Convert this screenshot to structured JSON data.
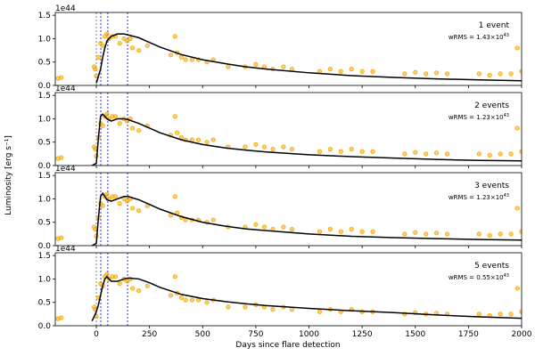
{
  "shared": {
    "ylabel": "Luminosity [erg s⁻¹]",
    "xlabel": "Days since flare detection"
  },
  "chart_data": [
    {
      "type": "scatter",
      "offset_text": "1e44",
      "label": "1 event",
      "wrms": "wRMS = 1.43×10",
      "wrms_exp": "43",
      "xlim": [
        -193,
        2000
      ],
      "ylim": [
        0,
        1.56
      ],
      "xticks": [
        0,
        250,
        500,
        750,
        1000,
        1250,
        1500,
        1750,
        2000
      ],
      "yticks": [
        {
          "value": 0,
          "label": "0.0"
        },
        {
          "value": 0.5,
          "label": "0.5"
        },
        {
          "value": 1,
          "label": "1.0"
        },
        {
          "value": 1.5,
          "label": "1.5"
        }
      ],
      "vlines": [
        {
          "x": 0,
          "color": "#808080"
        },
        {
          "x": 21,
          "color": "#3030d0"
        },
        {
          "x": 54,
          "color": "#3030d0"
        },
        {
          "x": 147,
          "color": "#3030d0"
        }
      ],
      "observations": {
        "color": "#f5a800",
        "x": [
          -180,
          -165,
          -10,
          -5,
          0,
          10,
          20,
          30,
          40,
          50,
          60,
          75,
          90,
          110,
          130,
          145,
          160,
          170,
          200,
          240,
          350,
          370,
          380,
          400,
          420,
          450,
          480,
          520,
          550,
          620,
          700,
          750,
          790,
          830,
          880,
          920,
          1050,
          1100,
          1150,
          1200,
          1250,
          1300,
          1450,
          1500,
          1550,
          1600,
          1650,
          1800,
          1850,
          1900,
          1950,
          1980,
          2000
        ],
        "values": [
          0.15,
          0.17,
          0.4,
          0.35,
          0.2,
          0.6,
          0.9,
          0.85,
          1.05,
          1.1,
          1.0,
          1.05,
          1.05,
          0.9,
          1.0,
          0.95,
          1.0,
          0.8,
          0.75,
          0.85,
          0.65,
          1.05,
          0.7,
          0.6,
          0.55,
          0.55,
          0.55,
          0.5,
          0.55,
          0.4,
          0.4,
          0.45,
          0.4,
          0.35,
          0.4,
          0.35,
          0.3,
          0.35,
          0.3,
          0.35,
          0.3,
          0.3,
          0.25,
          0.28,
          0.25,
          0.27,
          0.25,
          0.25,
          0.22,
          0.25,
          0.25,
          0.8,
          0.3
        ]
      },
      "model": {
        "color": "#000000",
        "x": [
          -20,
          0,
          10,
          20,
          30,
          40,
          50,
          70,
          100,
          130,
          150,
          200,
          250,
          300,
          400,
          500,
          600,
          700,
          800,
          1000,
          1200,
          1400,
          1600,
          1800,
          2000
        ],
        "values": [
          null,
          0.05,
          0.2,
          0.35,
          0.6,
          0.8,
          0.95,
          1.05,
          1.1,
          1.1,
          1.08,
          1.02,
          0.92,
          0.82,
          0.66,
          0.55,
          0.47,
          0.4,
          0.35,
          0.27,
          0.21,
          0.17,
          0.14,
          0.12,
          0.1
        ]
      }
    },
    {
      "type": "scatter",
      "offset_text": "1e44",
      "label": "2 events",
      "wrms": "wRMS = 1.23×10",
      "wrms_exp": "43",
      "xlim": [
        -193,
        2000
      ],
      "ylim": [
        0,
        1.56
      ],
      "xticks": [
        0,
        250,
        500,
        750,
        1000,
        1250,
        1500,
        1750,
        2000
      ],
      "yticks": [
        {
          "value": 0,
          "label": "0.0"
        },
        {
          "value": 0.5,
          "label": "0.5"
        },
        {
          "value": 1,
          "label": "1.0"
        },
        {
          "value": 1.5,
          "label": "1.5"
        }
      ],
      "vlines": [
        {
          "x": 0,
          "color": "#808080"
        },
        {
          "x": 21,
          "color": "#3030d0"
        },
        {
          "x": 54,
          "color": "#3030d0"
        },
        {
          "x": 147,
          "color": "#3030d0"
        }
      ],
      "observations": {
        "color": "#f5a800",
        "x": [
          -180,
          -165,
          -10,
          -5,
          0,
          10,
          20,
          30,
          40,
          50,
          60,
          75,
          90,
          110,
          130,
          145,
          160,
          170,
          200,
          240,
          350,
          370,
          380,
          400,
          420,
          450,
          480,
          520,
          550,
          620,
          700,
          750,
          790,
          830,
          880,
          920,
          1050,
          1100,
          1150,
          1200,
          1250,
          1300,
          1450,
          1500,
          1550,
          1600,
          1650,
          1800,
          1850,
          1900,
          1950,
          1980,
          2000
        ],
        "values": [
          0.15,
          0.17,
          0.4,
          0.35,
          0.2,
          0.6,
          0.9,
          0.85,
          1.05,
          1.1,
          1.0,
          1.05,
          1.05,
          0.9,
          1.0,
          0.95,
          1.0,
          0.8,
          0.75,
          0.85,
          0.65,
          1.05,
          0.7,
          0.6,
          0.55,
          0.55,
          0.55,
          0.5,
          0.55,
          0.4,
          0.4,
          0.45,
          0.4,
          0.35,
          0.4,
          0.35,
          0.3,
          0.35,
          0.3,
          0.35,
          0.3,
          0.3,
          0.25,
          0.28,
          0.25,
          0.27,
          0.25,
          0.25,
          0.22,
          0.25,
          0.25,
          0.8,
          0.3
        ]
      },
      "model": {
        "color": "#000000",
        "x": [
          -20,
          0,
          10,
          20,
          30,
          40,
          50,
          70,
          100,
          130,
          150,
          200,
          250,
          300,
          400,
          500,
          600,
          700,
          800,
          1000,
          1200,
          1400,
          1600,
          1800,
          2000
        ],
        "values": [
          0,
          0.05,
          0.6,
          1.05,
          1.1,
          1.05,
          1.0,
          0.95,
          1.0,
          1.0,
          0.98,
          0.9,
          0.8,
          0.7,
          0.55,
          0.45,
          0.38,
          0.33,
          0.29,
          0.23,
          0.19,
          0.16,
          0.13,
          0.11,
          0.1
        ]
      }
    },
    {
      "type": "scatter",
      "offset_text": "1e44",
      "label": "3 events",
      "wrms": "wRMS = 1.23×10",
      "wrms_exp": "43",
      "xlim": [
        -193,
        2000
      ],
      "ylim": [
        0,
        1.56
      ],
      "xticks": [
        0,
        250,
        500,
        750,
        1000,
        1250,
        1500,
        1750,
        2000
      ],
      "yticks": [
        {
          "value": 0,
          "label": "0.0"
        },
        {
          "value": 0.5,
          "label": "0.5"
        },
        {
          "value": 1,
          "label": "1.0"
        },
        {
          "value": 1.5,
          "label": "1.5"
        }
      ],
      "vlines": [
        {
          "x": 0,
          "color": "#808080"
        },
        {
          "x": 21,
          "color": "#3030d0"
        },
        {
          "x": 54,
          "color": "#3030d0"
        },
        {
          "x": 147,
          "color": "#3030d0"
        }
      ],
      "observations": {
        "color": "#f5a800",
        "x": [
          -180,
          -165,
          -10,
          -5,
          0,
          10,
          20,
          30,
          40,
          50,
          60,
          75,
          90,
          110,
          130,
          145,
          160,
          170,
          200,
          240,
          350,
          370,
          380,
          400,
          420,
          450,
          480,
          520,
          550,
          620,
          700,
          750,
          790,
          830,
          880,
          920,
          1050,
          1100,
          1150,
          1200,
          1250,
          1300,
          1450,
          1500,
          1550,
          1600,
          1650,
          1800,
          1850,
          1900,
          1950,
          1980,
          2000
        ],
        "values": [
          0.15,
          0.17,
          0.4,
          0.35,
          0.2,
          0.6,
          0.9,
          0.85,
          1.05,
          1.1,
          1.0,
          1.05,
          1.05,
          0.9,
          1.0,
          0.95,
          1.0,
          0.8,
          0.75,
          0.85,
          0.65,
          1.05,
          0.7,
          0.6,
          0.55,
          0.55,
          0.55,
          0.5,
          0.55,
          0.4,
          0.4,
          0.45,
          0.4,
          0.35,
          0.4,
          0.35,
          0.3,
          0.35,
          0.3,
          0.35,
          0.3,
          0.3,
          0.25,
          0.28,
          0.25,
          0.27,
          0.25,
          0.25,
          0.22,
          0.25,
          0.25,
          0.8,
          0.3
        ]
      },
      "model": {
        "color": "#000000",
        "x": [
          -20,
          0,
          10,
          20,
          30,
          40,
          50,
          70,
          100,
          130,
          150,
          200,
          250,
          300,
          400,
          500,
          600,
          700,
          800,
          1000,
          1200,
          1400,
          1600,
          1800,
          2000
        ],
        "values": [
          0,
          0.05,
          0.6,
          1.05,
          1.12,
          1.05,
          0.98,
          0.95,
          1.0,
          1.05,
          1.05,
          0.98,
          0.88,
          0.78,
          0.62,
          0.5,
          0.42,
          0.36,
          0.32,
          0.25,
          0.2,
          0.17,
          0.15,
          0.13,
          0.12
        ]
      }
    },
    {
      "type": "scatter",
      "offset_text": "1e44",
      "label": "5 events",
      "wrms": "wRMS = 0.55×10",
      "wrms_exp": "43",
      "xlim": [
        -193,
        2000
      ],
      "ylim": [
        0,
        1.56
      ],
      "xticks": [
        0,
        250,
        500,
        750,
        1000,
        1250,
        1500,
        1750,
        2000
      ],
      "yticks": [
        {
          "value": 0,
          "label": "0.0"
        },
        {
          "value": 0.5,
          "label": "0.5"
        },
        {
          "value": 1,
          "label": "1.0"
        },
        {
          "value": 1.5,
          "label": "1.5"
        }
      ],
      "vlines": [
        {
          "x": 0,
          "color": "#808080"
        },
        {
          "x": 21,
          "color": "#3030d0"
        },
        {
          "x": 54,
          "color": "#3030d0"
        },
        {
          "x": 147,
          "color": "#3030d0"
        }
      ],
      "observations": {
        "color": "#f5a800",
        "x": [
          -180,
          -165,
          -10,
          -5,
          0,
          10,
          20,
          30,
          40,
          50,
          60,
          75,
          90,
          110,
          130,
          145,
          160,
          170,
          200,
          240,
          350,
          370,
          380,
          400,
          420,
          450,
          480,
          520,
          550,
          620,
          700,
          750,
          790,
          830,
          880,
          920,
          1050,
          1100,
          1150,
          1200,
          1250,
          1300,
          1450,
          1500,
          1550,
          1600,
          1650,
          1800,
          1850,
          1900,
          1950,
          1980,
          2000
        ],
        "values": [
          0.15,
          0.17,
          0.4,
          0.35,
          0.2,
          0.6,
          0.9,
          0.85,
          1.05,
          1.1,
          1.0,
          1.05,
          1.05,
          0.9,
          1.0,
          0.95,
          1.0,
          0.8,
          0.75,
          0.85,
          0.65,
          1.05,
          0.7,
          0.6,
          0.55,
          0.55,
          0.55,
          0.5,
          0.55,
          0.4,
          0.4,
          0.45,
          0.4,
          0.35,
          0.4,
          0.35,
          0.3,
          0.35,
          0.3,
          0.35,
          0.3,
          0.3,
          0.25,
          0.28,
          0.25,
          0.27,
          0.25,
          0.25,
          0.22,
          0.25,
          0.25,
          0.8,
          0.3
        ]
      },
      "model": {
        "color": "#000000",
        "x": [
          -20,
          0,
          10,
          20,
          30,
          40,
          50,
          70,
          100,
          130,
          150,
          200,
          250,
          300,
          400,
          500,
          600,
          700,
          800,
          1000,
          1200,
          1400,
          1600,
          1800,
          2000
        ],
        "values": [
          0.1,
          0.3,
          0.45,
          0.65,
          0.85,
          1.0,
          1.05,
          0.95,
          0.95,
          1.0,
          1.02,
          1.0,
          0.92,
          0.82,
          0.67,
          0.58,
          0.52,
          0.47,
          0.43,
          0.37,
          0.32,
          0.28,
          0.23,
          0.19,
          0.16
        ]
      },
      "show_xtick_labels": true
    }
  ]
}
